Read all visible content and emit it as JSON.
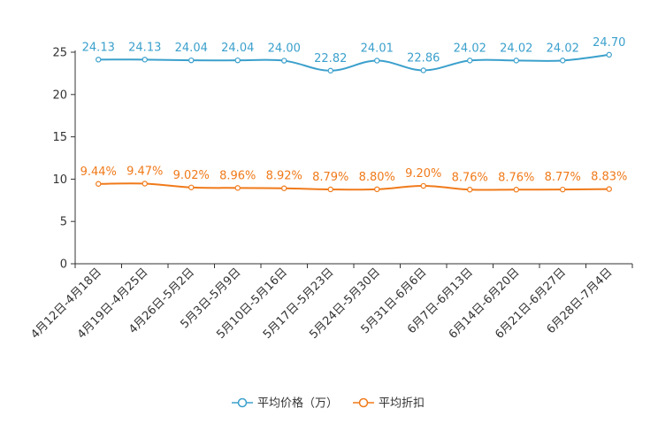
{
  "chart_data": {
    "type": "line",
    "categories": [
      "4月12日-4月18日",
      "4月19日-4月25日",
      "4月26日-5月2日",
      "5月3日-5月9日",
      "5月10日-5月16日",
      "5月17日-5月23日",
      "5月24日-5月30日",
      "5月31日-6月6日",
      "6月7日-6月13日",
      "6月14日-6月20日",
      "6月21日-6月27日",
      "6月28日-7月4日"
    ],
    "ylim": [
      0,
      25
    ],
    "yticks": [
      0,
      5,
      10,
      15,
      20,
      25
    ],
    "series": [
      {
        "name": "平均价格（万）",
        "color": "#3ba0cc",
        "values": [
          24.13,
          24.13,
          24.04,
          24.04,
          24.0,
          22.82,
          24.01,
          22.86,
          24.02,
          24.02,
          24.02,
          24.7
        ],
        "labels": [
          "24.13",
          "24.13",
          "24.04",
          "24.04",
          "24.00",
          "22.82",
          "24.01",
          "22.86",
          "24.02",
          "24.02",
          "24.02",
          "24.70"
        ]
      },
      {
        "name": "平均折扣",
        "color": "#f07a1a",
        "values": [
          9.44,
          9.47,
          9.02,
          8.96,
          8.92,
          8.79,
          8.8,
          9.2,
          8.76,
          8.76,
          8.77,
          8.83
        ],
        "labels": [
          "9.44%",
          "9.47%",
          "9.02%",
          "8.96%",
          "8.92%",
          "8.79%",
          "8.80%",
          "9.20%",
          "8.76%",
          "8.76%",
          "8.77%",
          "8.83%"
        ]
      }
    ]
  }
}
